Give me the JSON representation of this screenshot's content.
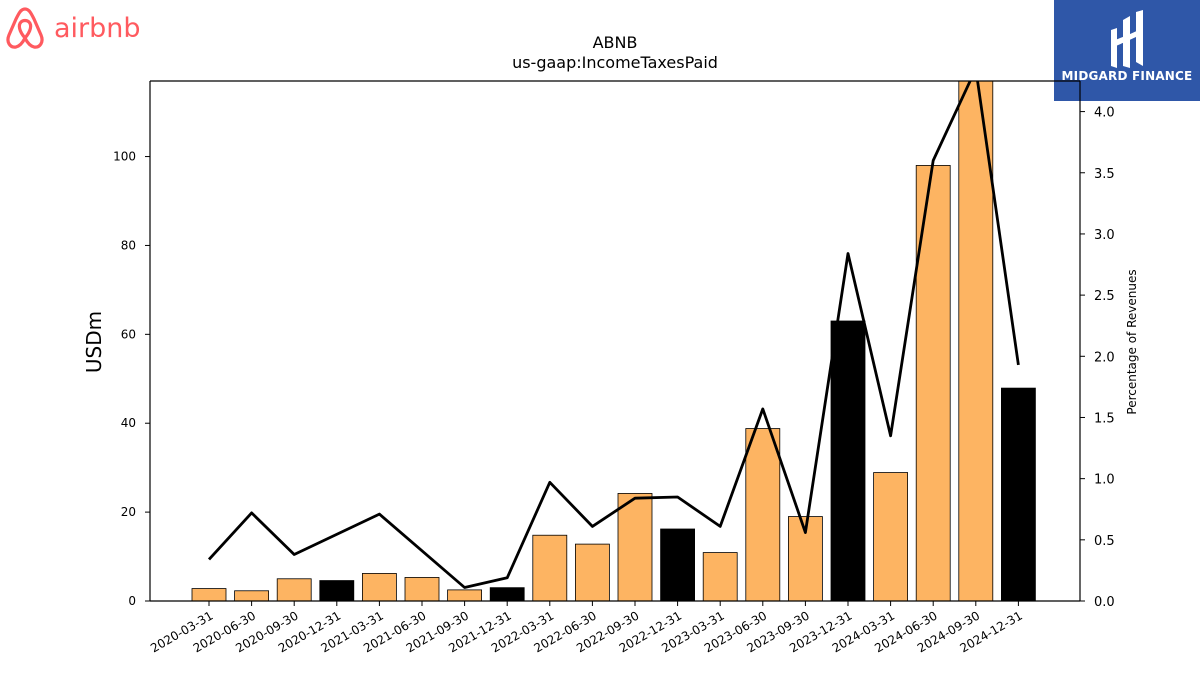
{
  "logos": {
    "left": {
      "text": "airbnb",
      "color": "#ff5a5f"
    },
    "right": {
      "text": "MIDGARD FINANCE",
      "background": "#2f57a8"
    }
  },
  "chart_data": {
    "type": "bar",
    "title": "ABNB",
    "subtitle": "us-gaap:IncomeTaxesPaid",
    "ylabel": "USDm",
    "y2label": "Percentage of Revenues",
    "ylim": [
      0,
      117
    ],
    "y2lim": [
      0,
      4.25
    ],
    "yticks": [
      0,
      20,
      40,
      60,
      80,
      100
    ],
    "y2ticks": [
      "0.0",
      "0.5",
      "1.0",
      "1.5",
      "2.0",
      "2.5",
      "3.0",
      "3.5",
      "4.0"
    ],
    "categories": [
      "2020-03-31",
      "2020-06-30",
      "2020-09-30",
      "2020-12-31",
      "2021-03-31",
      "2021-06-30",
      "2021-09-30",
      "2021-12-31",
      "2022-03-31",
      "2022-06-30",
      "2022-09-30",
      "2022-12-31",
      "2023-03-31",
      "2023-06-30",
      "2023-09-30",
      "2023-12-31",
      "2024-03-31",
      "2024-06-30",
      "2024-09-30",
      "2024-12-31"
    ],
    "series": [
      {
        "type": "bar",
        "axis": "left",
        "values": [
          2.8,
          2.3,
          5.0,
          4.6,
          6.2,
          5.3,
          2.5,
          3.0,
          14.8,
          12.8,
          24.2,
          16.2,
          10.9,
          38.8,
          19.0,
          63.0,
          28.9,
          98.0,
          117.0,
          47.9
        ],
        "colors": [
          "#fdb462",
          "#fdb462",
          "#fdb462",
          "#000000",
          "#fdb462",
          "#fdb462",
          "#fdb462",
          "#000000",
          "#fdb462",
          "#fdb462",
          "#fdb462",
          "#000000",
          "#fdb462",
          "#fdb462",
          "#fdb462",
          "#000000",
          "#fdb462",
          "#fdb462",
          "#fdb462",
          "#000000"
        ]
      },
      {
        "type": "line",
        "axis": "right",
        "color": "#000000",
        "values": [
          0.34,
          0.72,
          0.38,
          null,
          0.71,
          null,
          0.11,
          0.19,
          0.97,
          0.61,
          0.84,
          0.85,
          0.61,
          1.57,
          0.56,
          2.84,
          1.35,
          3.6,
          4.35,
          1.93
        ]
      }
    ],
    "grid": false,
    "legend": "none"
  }
}
